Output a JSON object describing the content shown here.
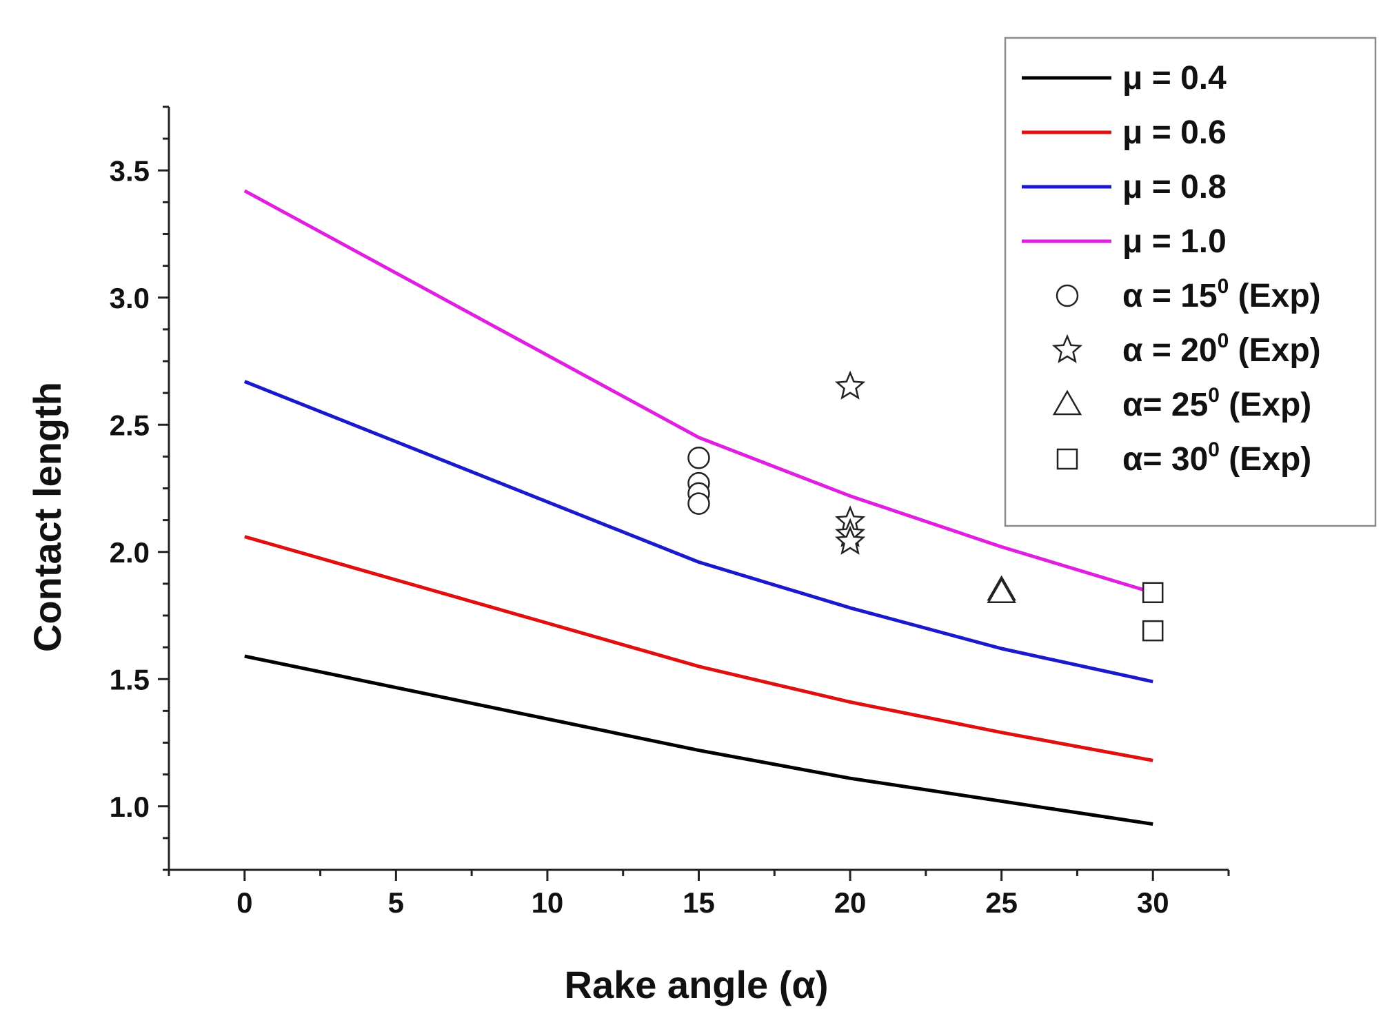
{
  "chart_data": {
    "type": "line",
    "title": "",
    "xlabel": "Rake angle (α)",
    "ylabel": "Contact length",
    "xlim": [
      -2.5,
      32.5
    ],
    "ylim": [
      0.75,
      3.75
    ],
    "xticks": [
      0,
      5,
      10,
      15,
      20,
      25,
      30
    ],
    "xtick_labels": [
      "0",
      "5",
      "10",
      "15",
      "20",
      "25",
      "30"
    ],
    "yticks": [
      1.0,
      1.5,
      2.0,
      2.5,
      3.0,
      3.5
    ],
    "ytick_labels": [
      "1.0",
      "1.5",
      "2.0",
      "2.5",
      "3.0",
      "3.5"
    ],
    "legend_position": "top-right",
    "x": [
      0,
      15,
      20,
      25,
      30
    ],
    "series": [
      {
        "name": "μ = 0.4",
        "color": "#000000",
        "values": [
          1.59,
          1.22,
          1.11,
          1.02,
          0.93
        ]
      },
      {
        "name": "μ = 0.6",
        "color": "#e01010",
        "values": [
          2.06,
          1.55,
          1.41,
          1.29,
          1.18
        ]
      },
      {
        "name": "μ = 0.8",
        "color": "#1a1acc",
        "values": [
          2.67,
          1.96,
          1.78,
          1.62,
          1.49
        ]
      },
      {
        "name": "μ = 1.0",
        "color": "#e020e0",
        "values": [
          3.42,
          2.45,
          2.22,
          2.02,
          1.84
        ]
      }
    ],
    "experimental": [
      {
        "name": "α = 15",
        "superscript": "0",
        "suffix": " (Exp)",
        "marker": "circle",
        "x": 15,
        "values": [
          2.37,
          2.27,
          2.23,
          2.19
        ]
      },
      {
        "name": "α = 20",
        "superscript": "0",
        "suffix": " (Exp)",
        "marker": "star",
        "x": 20,
        "values": [
          2.65,
          2.12,
          2.07,
          2.04
        ]
      },
      {
        "name": "α= 25",
        "superscript": "0",
        "suffix": " (Exp)",
        "marker": "triangle",
        "x": 25,
        "values": [
          1.85,
          1.84
        ]
      },
      {
        "name": "α= 30",
        "superscript": "0",
        "suffix": " (Exp)",
        "marker": "square",
        "x": 30,
        "values": [
          1.84,
          1.69
        ]
      }
    ]
  }
}
